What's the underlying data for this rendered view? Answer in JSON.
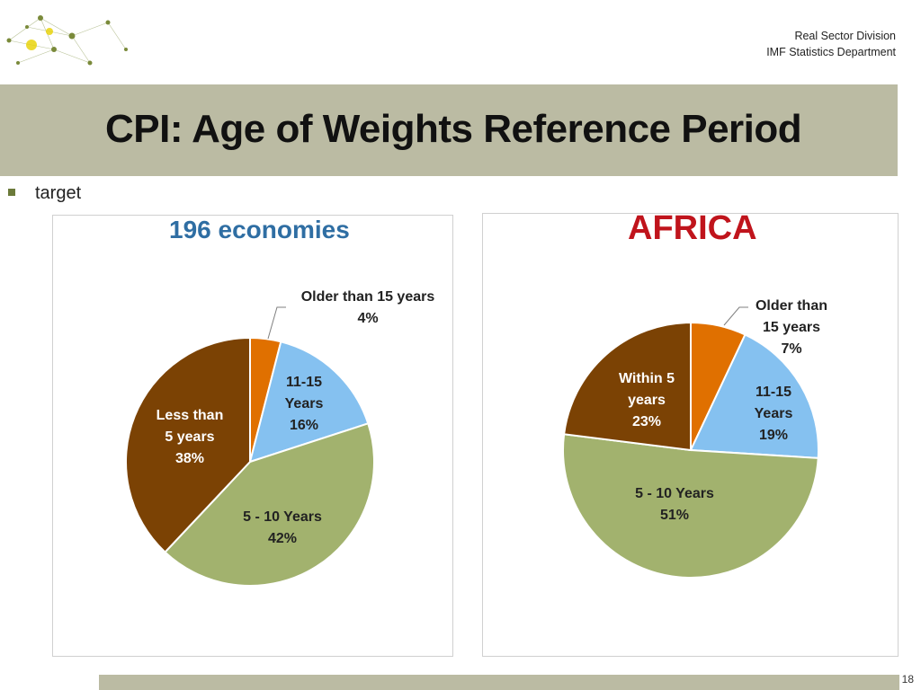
{
  "header": {
    "org_line1": "Real Sector Division",
    "org_line2": "IMF Statistics Department"
  },
  "slide": {
    "title": "CPI: Age of Weights Reference Period",
    "bullet": "target",
    "page_number": "18"
  },
  "colors": {
    "orange": "#e07000",
    "light_blue": "#85c1f0",
    "olive_green": "#a2b26e",
    "brown": "#7b4204",
    "band": "#bbbba3"
  },
  "chart_data": [
    {
      "type": "pie",
      "title": "196 economies",
      "slices": [
        {
          "label_lines": [
            "Older than 15 years"
          ],
          "value": 4,
          "value_label": "4%",
          "color": "#e07000"
        },
        {
          "label_lines": [
            "11-15",
            "Years"
          ],
          "value": 16,
          "value_label": "16%",
          "color": "#85c1f0"
        },
        {
          "label_lines": [
            "5 - 10 Years"
          ],
          "value": 42,
          "value_label": "42%",
          "color": "#a2b26e"
        },
        {
          "label_lines": [
            "Less than",
            "5 years"
          ],
          "value": 38,
          "value_label": "38%",
          "color": "#7b4204"
        }
      ]
    },
    {
      "type": "pie",
      "title": "AFRICA",
      "slices": [
        {
          "label_lines": [
            "Older than",
            "15 years"
          ],
          "value": 7,
          "value_label": "7%",
          "color": "#e07000"
        },
        {
          "label_lines": [
            "11-15",
            "Years"
          ],
          "value": 19,
          "value_label": "19%",
          "color": "#85c1f0"
        },
        {
          "label_lines": [
            "5 - 10 Years"
          ],
          "value": 51,
          "value_label": "51%",
          "color": "#a2b26e"
        },
        {
          "label_lines": [
            "Within 5",
            "years"
          ],
          "value": 23,
          "value_label": "23%",
          "color": "#7b4204"
        }
      ]
    }
  ]
}
